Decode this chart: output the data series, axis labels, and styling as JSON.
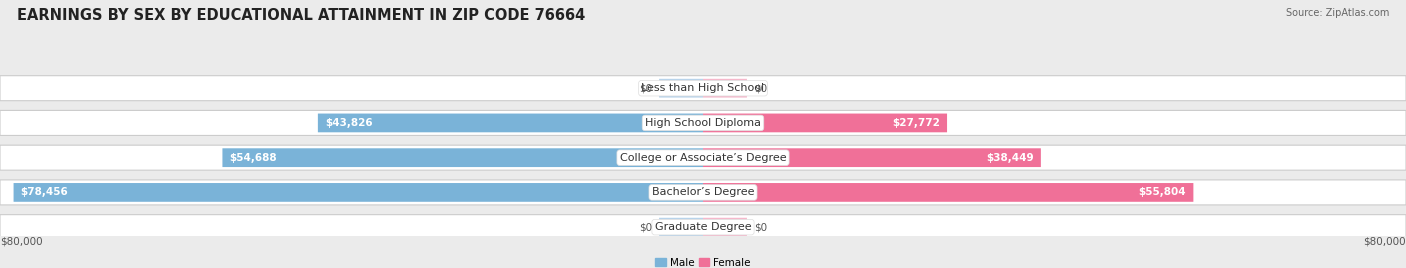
{
  "title": "EARNINGS BY SEX BY EDUCATIONAL ATTAINMENT IN ZIP CODE 76664",
  "source": "Source: ZipAtlas.com",
  "categories": [
    "Less than High School",
    "High School Diploma",
    "College or Associate’s Degree",
    "Bachelor’s Degree",
    "Graduate Degree"
  ],
  "male_values": [
    0,
    43826,
    54688,
    78456,
    0
  ],
  "female_values": [
    0,
    27772,
    38449,
    55804,
    0
  ],
  "male_color": "#7ab3d8",
  "female_color": "#f07098",
  "male_color_light": "#b8d3ea",
  "female_color_light": "#f5b8cb",
  "max_value": 80000,
  "stub_value": 5000,
  "axis_label": "$80,000",
  "bg_color": "#ebebeb",
  "row_bg_color": "#ffffff",
  "title_fontsize": 10.5,
  "source_fontsize": 7.0,
  "label_fontsize": 7.5,
  "value_fontsize": 7.5,
  "cat_fontsize": 8.0
}
